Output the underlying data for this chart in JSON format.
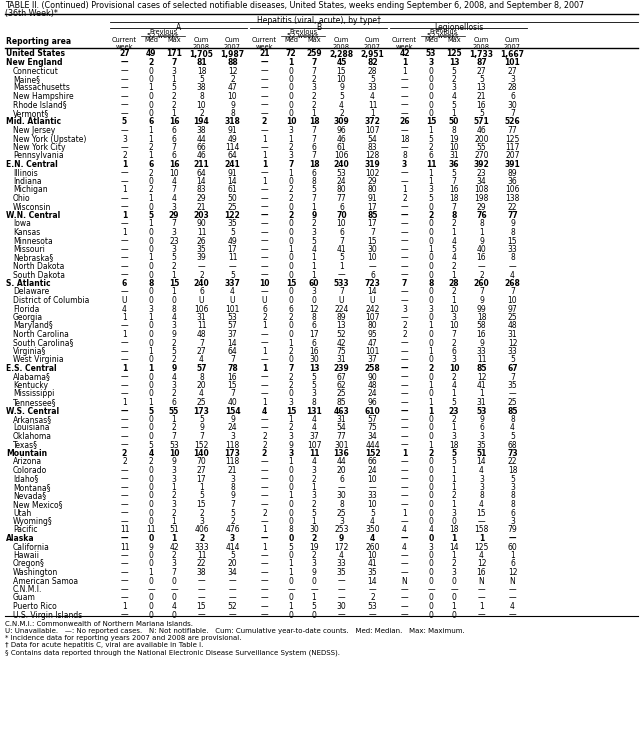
{
  "title_line1": "TABLE II. (Continued) Provisional cases of selected notifiable diseases, United States, weeks ending September 6, 2008, and September 8, 2007",
  "title_line2": "(36th Week)*",
  "footnote1": "C.N.M.I.: Commonwealth of Northern Mariana Islands.",
  "footnote2": "U: Unavailable.   —: No reported cases.   N: Not notifiable.   Cum: Cumulative year-to-date counts.   Med: Median.   Max: Maximum.",
  "footnote3": "* Incidence data for reporting years 2007 and 2008 are provisional.",
  "footnote4": "† Data for acute hepatitis C, viral are available in Table I.",
  "footnote5": "§ Contains data reported through the National Electronic Disease Surveillance System (NEDSS).",
  "rows": [
    [
      "United States",
      "27",
      "49",
      "171",
      "1,705",
      "1,987",
      "21",
      "72",
      "259",
      "2,288",
      "2,951",
      "42",
      "53",
      "125",
      "1,733",
      "1,667"
    ],
    [
      "New England",
      "—",
      "2",
      "7",
      "81",
      "88",
      "—",
      "1",
      "7",
      "45",
      "82",
      "1",
      "3",
      "13",
      "87",
      "101"
    ],
    [
      "Connecticut",
      "—",
      "0",
      "3",
      "18",
      "12",
      "—",
      "0",
      "7",
      "15",
      "28",
      "1",
      "0",
      "5",
      "27",
      "27"
    ],
    [
      "Maine§",
      "—",
      "0",
      "1",
      "5",
      "2",
      "—",
      "0",
      "2",
      "10",
      "5",
      "—",
      "0",
      "2",
      "5",
      "3"
    ],
    [
      "Massachusetts",
      "—",
      "1",
      "5",
      "38",
      "47",
      "—",
      "0",
      "3",
      "9",
      "33",
      "—",
      "0",
      "3",
      "13",
      "28"
    ],
    [
      "New Hampshire",
      "—",
      "0",
      "2",
      "8",
      "10",
      "—",
      "0",
      "2",
      "5",
      "4",
      "—",
      "0",
      "4",
      "21",
      "6"
    ],
    [
      "Rhode Island§",
      "—",
      "0",
      "2",
      "10",
      "9",
      "—",
      "0",
      "2",
      "4",
      "11",
      "—",
      "0",
      "5",
      "16",
      "30"
    ],
    [
      "Vermont§",
      "—",
      "0",
      "1",
      "2",
      "8",
      "—",
      "0",
      "1",
      "2",
      "1",
      "—",
      "0",
      "1",
      "5",
      "7"
    ],
    [
      "Mid. Atlantic",
      "5",
      "6",
      "16",
      "194",
      "318",
      "2",
      "10",
      "18",
      "309",
      "372",
      "26",
      "15",
      "50",
      "571",
      "526"
    ],
    [
      "New Jersey",
      "—",
      "1",
      "6",
      "38",
      "91",
      "—",
      "3",
      "7",
      "96",
      "107",
      "—",
      "1",
      "8",
      "46",
      "77"
    ],
    [
      "New York (Upstate)",
      "3",
      "1",
      "6",
      "44",
      "49",
      "1",
      "1",
      "7",
      "46",
      "54",
      "18",
      "5",
      "19",
      "200",
      "125"
    ],
    [
      "New York City",
      "—",
      "2",
      "7",
      "66",
      "114",
      "—",
      "2",
      "6",
      "61",
      "83",
      "—",
      "2",
      "10",
      "55",
      "117"
    ],
    [
      "Pennsylvania",
      "2",
      "1",
      "6",
      "46",
      "64",
      "1",
      "3",
      "7",
      "106",
      "128",
      "8",
      "6",
      "31",
      "270",
      "207"
    ],
    [
      "E.N. Central",
      "1",
      "6",
      "16",
      "211",
      "241",
      "1",
      "7",
      "18",
      "240",
      "319",
      "3",
      "11",
      "36",
      "392",
      "391"
    ],
    [
      "Illinois",
      "—",
      "2",
      "10",
      "64",
      "91",
      "—",
      "1",
      "6",
      "53",
      "102",
      "—",
      "1",
      "5",
      "23",
      "89"
    ],
    [
      "Indiana",
      "—",
      "0",
      "4",
      "14",
      "14",
      "1",
      "0",
      "8",
      "24",
      "29",
      "—",
      "1",
      "7",
      "34",
      "36"
    ],
    [
      "Michigan",
      "1",
      "2",
      "7",
      "83",
      "61",
      "—",
      "2",
      "5",
      "80",
      "80",
      "1",
      "3",
      "16",
      "108",
      "106"
    ],
    [
      "Ohio",
      "—",
      "1",
      "4",
      "29",
      "50",
      "—",
      "2",
      "7",
      "77",
      "91",
      "2",
      "5",
      "18",
      "198",
      "138"
    ],
    [
      "Wisconsin",
      "—",
      "0",
      "3",
      "21",
      "25",
      "—",
      "0",
      "1",
      "6",
      "17",
      "—",
      "0",
      "7",
      "29",
      "22"
    ],
    [
      "W.N. Central",
      "1",
      "5",
      "29",
      "203",
      "122",
      "—",
      "2",
      "9",
      "70",
      "85",
      "—",
      "2",
      "8",
      "76",
      "77"
    ],
    [
      "Iowa",
      "—",
      "1",
      "7",
      "90",
      "35",
      "—",
      "0",
      "2",
      "10",
      "17",
      "—",
      "0",
      "2",
      "8",
      "9"
    ],
    [
      "Kansas",
      "1",
      "0",
      "3",
      "11",
      "5",
      "—",
      "0",
      "3",
      "6",
      "7",
      "—",
      "0",
      "1",
      "1",
      "8"
    ],
    [
      "Minnesota",
      "—",
      "0",
      "23",
      "26",
      "49",
      "—",
      "0",
      "5",
      "7",
      "15",
      "—",
      "0",
      "4",
      "9",
      "15"
    ],
    [
      "Missouri",
      "—",
      "0",
      "3",
      "35",
      "17",
      "—",
      "1",
      "4",
      "41",
      "30",
      "—",
      "1",
      "5",
      "40",
      "33"
    ],
    [
      "Nebraska§",
      "—",
      "1",
      "5",
      "39",
      "11",
      "—",
      "0",
      "1",
      "5",
      "10",
      "—",
      "0",
      "4",
      "16",
      "8"
    ],
    [
      "North Dakota",
      "—",
      "0",
      "2",
      "—",
      "—",
      "—",
      "0",
      "1",
      "1",
      "—",
      "—",
      "0",
      "2",
      "—",
      "—"
    ],
    [
      "South Dakota",
      "—",
      "0",
      "1",
      "2",
      "5",
      "—",
      "0",
      "1",
      "—",
      "6",
      "—",
      "0",
      "1",
      "2",
      "4"
    ],
    [
      "S. Atlantic",
      "6",
      "8",
      "15",
      "240",
      "337",
      "10",
      "15",
      "60",
      "533",
      "723",
      "7",
      "8",
      "28",
      "260",
      "268"
    ],
    [
      "Delaware",
      "—",
      "0",
      "1",
      "6",
      "4",
      "—",
      "0",
      "3",
      "7",
      "14",
      "—",
      "0",
      "2",
      "7",
      "7"
    ],
    [
      "District of Columbia",
      "U",
      "0",
      "0",
      "U",
      "U",
      "U",
      "0",
      "0",
      "U",
      "U",
      "—",
      "0",
      "1",
      "9",
      "10"
    ],
    [
      "Florida",
      "4",
      "3",
      "8",
      "106",
      "101",
      "6",
      "6",
      "12",
      "224",
      "242",
      "3",
      "3",
      "10",
      "99",
      "97"
    ],
    [
      "Georgia",
      "1",
      "1",
      "4",
      "31",
      "53",
      "2",
      "2",
      "8",
      "89",
      "107",
      "—",
      "0",
      "3",
      "18",
      "25"
    ],
    [
      "Maryland§",
      "—",
      "0",
      "3",
      "11",
      "57",
      "1",
      "0",
      "6",
      "13",
      "80",
      "2",
      "1",
      "10",
      "58",
      "48"
    ],
    [
      "North Carolina",
      "1",
      "0",
      "9",
      "48",
      "37",
      "—",
      "0",
      "17",
      "52",
      "95",
      "2",
      "0",
      "7",
      "16",
      "31"
    ],
    [
      "South Carolina§",
      "—",
      "0",
      "2",
      "7",
      "14",
      "—",
      "1",
      "6",
      "42",
      "47",
      "—",
      "0",
      "2",
      "9",
      "12"
    ],
    [
      "Virginia§",
      "—",
      "1",
      "5",
      "27",
      "64",
      "1",
      "2",
      "16",
      "75",
      "101",
      "—",
      "1",
      "6",
      "33",
      "33"
    ],
    [
      "West Virginia",
      "—",
      "0",
      "2",
      "4",
      "7",
      "—",
      "0",
      "30",
      "31",
      "37",
      "—",
      "0",
      "3",
      "11",
      "5"
    ],
    [
      "E.S. Central",
      "1",
      "1",
      "9",
      "57",
      "78",
      "1",
      "7",
      "13",
      "239",
      "258",
      "—",
      "2",
      "10",
      "85",
      "67"
    ],
    [
      "Alabama§",
      "—",
      "0",
      "4",
      "8",
      "16",
      "—",
      "2",
      "5",
      "67",
      "90",
      "—",
      "0",
      "2",
      "12",
      "7"
    ],
    [
      "Kentucky",
      "—",
      "0",
      "3",
      "20",
      "15",
      "—",
      "2",
      "5",
      "62",
      "48",
      "—",
      "1",
      "4",
      "41",
      "35"
    ],
    [
      "Mississippi",
      "—",
      "0",
      "2",
      "4",
      "7",
      "—",
      "0",
      "3",
      "25",
      "24",
      "—",
      "0",
      "1",
      "1",
      "—"
    ],
    [
      "Tennessee§",
      "1",
      "1",
      "6",
      "25",
      "40",
      "1",
      "3",
      "8",
      "85",
      "96",
      "—",
      "1",
      "5",
      "31",
      "25"
    ],
    [
      "W.S. Central",
      "—",
      "5",
      "55",
      "173",
      "154",
      "4",
      "15",
      "131",
      "463",
      "610",
      "—",
      "1",
      "23",
      "53",
      "85"
    ],
    [
      "Arkansas§",
      "—",
      "0",
      "1",
      "5",
      "9",
      "—",
      "1",
      "4",
      "31",
      "57",
      "—",
      "0",
      "2",
      "9",
      "8"
    ],
    [
      "Louisiana",
      "—",
      "0",
      "2",
      "9",
      "24",
      "—",
      "2",
      "4",
      "54",
      "75",
      "—",
      "0",
      "1",
      "6",
      "4"
    ],
    [
      "Oklahoma",
      "—",
      "0",
      "7",
      "7",
      "3",
      "2",
      "3",
      "37",
      "77",
      "34",
      "—",
      "0",
      "3",
      "3",
      "5"
    ],
    [
      "Texas§",
      "—",
      "5",
      "53",
      "152",
      "118",
      "2",
      "9",
      "107",
      "301",
      "444",
      "—",
      "1",
      "18",
      "35",
      "68"
    ],
    [
      "Mountain",
      "2",
      "4",
      "10",
      "140",
      "173",
      "2",
      "3",
      "11",
      "136",
      "152",
      "1",
      "2",
      "5",
      "51",
      "73"
    ],
    [
      "Arizona",
      "2",
      "2",
      "9",
      "70",
      "118",
      "—",
      "1",
      "4",
      "44",
      "66",
      "—",
      "0",
      "5",
      "14",
      "22"
    ],
    [
      "Colorado",
      "—",
      "0",
      "3",
      "27",
      "21",
      "—",
      "0",
      "3",
      "20",
      "24",
      "—",
      "0",
      "1",
      "4",
      "18"
    ],
    [
      "Idaho§",
      "—",
      "0",
      "3",
      "17",
      "3",
      "—",
      "0",
      "2",
      "6",
      "10",
      "—",
      "0",
      "1",
      "3",
      "5"
    ],
    [
      "Montana§",
      "—",
      "0",
      "1",
      "1",
      "8",
      "—",
      "0",
      "1",
      "—",
      "—",
      "—",
      "0",
      "1",
      "3",
      "3"
    ],
    [
      "Nevada§",
      "—",
      "0",
      "2",
      "5",
      "9",
      "—",
      "1",
      "3",
      "30",
      "33",
      "—",
      "0",
      "2",
      "8",
      "8"
    ],
    [
      "New Mexico§",
      "—",
      "0",
      "3",
      "15",
      "7",
      "—",
      "0",
      "2",
      "8",
      "10",
      "—",
      "0",
      "1",
      "4",
      "8"
    ],
    [
      "Utah",
      "—",
      "0",
      "2",
      "2",
      "5",
      "2",
      "0",
      "5",
      "25",
      "5",
      "1",
      "0",
      "3",
      "15",
      "6"
    ],
    [
      "Wyoming§",
      "—",
      "0",
      "1",
      "3",
      "2",
      "—",
      "0",
      "1",
      "3",
      "4",
      "—",
      "0",
      "0",
      "—",
      "3"
    ],
    [
      "Pacific",
      "11",
      "11",
      "51",
      "406",
      "476",
      "1",
      "8",
      "30",
      "253",
      "350",
      "4",
      "4",
      "18",
      "158",
      "79"
    ],
    [
      "Alaska",
      "—",
      "0",
      "1",
      "2",
      "3",
      "—",
      "0",
      "2",
      "9",
      "4",
      "—",
      "0",
      "1",
      "1",
      "—"
    ],
    [
      "California",
      "11",
      "9",
      "42",
      "333",
      "414",
      "1",
      "5",
      "19",
      "172",
      "260",
      "4",
      "3",
      "14",
      "125",
      "60"
    ],
    [
      "Hawaii",
      "—",
      "0",
      "2",
      "11",
      "5",
      "—",
      "0",
      "2",
      "4",
      "10",
      "—",
      "0",
      "1",
      "4",
      "1"
    ],
    [
      "Oregon§",
      "—",
      "0",
      "3",
      "22",
      "20",
      "—",
      "1",
      "3",
      "33",
      "41",
      "—",
      "0",
      "2",
      "12",
      "6"
    ],
    [
      "Washington",
      "—",
      "1",
      "7",
      "38",
      "34",
      "—",
      "1",
      "9",
      "35",
      "35",
      "—",
      "0",
      "3",
      "16",
      "12"
    ],
    [
      "American Samoa",
      "—",
      "0",
      "0",
      "—",
      "—",
      "—",
      "0",
      "0",
      "—",
      "14",
      "N",
      "0",
      "0",
      "N",
      "N"
    ],
    [
      "C.N.M.I.",
      "—",
      "—",
      "—",
      "—",
      "—",
      "—",
      "—",
      "—",
      "—",
      "—",
      "—",
      "—",
      "—",
      "—",
      "—"
    ],
    [
      "Guam",
      "—",
      "0",
      "0",
      "—",
      "—",
      "—",
      "0",
      "1",
      "—",
      "2",
      "—",
      "0",
      "0",
      "—",
      "—"
    ],
    [
      "Puerto Rico",
      "1",
      "0",
      "4",
      "15",
      "52",
      "—",
      "1",
      "5",
      "30",
      "53",
      "—",
      "0",
      "1",
      "1",
      "4"
    ],
    [
      "U.S. Virgin Islands",
      "—",
      "0",
      "0",
      "—",
      "—",
      "—",
      "0",
      "0",
      "—",
      "—",
      "—",
      "0",
      "0",
      "—",
      "—"
    ]
  ],
  "bold_rows": [
    0,
    1,
    8,
    13,
    19,
    27,
    37,
    42,
    47,
    57
  ],
  "indent_rows": [
    2,
    3,
    4,
    5,
    6,
    7,
    9,
    10,
    11,
    12,
    14,
    15,
    16,
    17,
    18,
    20,
    21,
    22,
    23,
    24,
    25,
    26,
    28,
    29,
    30,
    31,
    32,
    33,
    34,
    35,
    36,
    38,
    39,
    40,
    41,
    43,
    44,
    45,
    46,
    48,
    49,
    50,
    51,
    52,
    53,
    54,
    55,
    56,
    58,
    59,
    60,
    61,
    62,
    63,
    64,
    65,
    66,
    67
  ]
}
